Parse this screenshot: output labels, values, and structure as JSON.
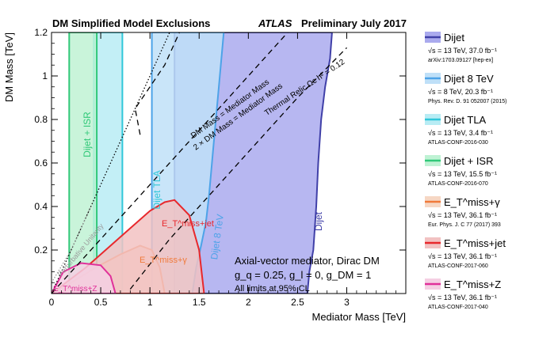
{
  "chart_data": {
    "type": "area",
    "title": "DM Simplified Model Exclusions",
    "title_right_italic": "ATLAS",
    "title_right": "Preliminary July 2017",
    "xlabel": "Mediator Mass [TeV]",
    "ylabel": "DM Mass [TeV]",
    "xlim": [
      0,
      3.6
    ],
    "ylim": [
      0,
      1.2
    ],
    "xticks": [
      0,
      0.5,
      1,
      1.5,
      2,
      2.5,
      3
    ],
    "xtick_labels": [
      "0",
      "0.5",
      "1",
      "1.5",
      "2",
      "2.5",
      "3"
    ],
    "yticks": [
      0.2,
      0.4,
      0.6,
      0.8,
      1.0,
      1.2
    ],
    "ytick_labels": [
      "0.2",
      "0.4",
      "0.6",
      "0.8",
      "1",
      "1.2"
    ],
    "regions": [
      {
        "name": "Dijet",
        "fill": "#aaaaee",
        "edge": "#4040a8",
        "points": [
          [
            1.25,
            0
          ],
          [
            1.25,
            1.2
          ],
          [
            2.85,
            1.2
          ],
          [
            2.83,
            1.08
          ],
          [
            2.78,
            0.95
          ],
          [
            2.74,
            0.8
          ],
          [
            2.71,
            0.6
          ],
          [
            2.69,
            0.4
          ],
          [
            2.66,
            0.2
          ],
          [
            2.62,
            0.1
          ],
          [
            2.6,
            0
          ]
        ]
      },
      {
        "name": "Dijet 8 TeV",
        "fill": "#bfe0f8",
        "edge": "#4da3e8",
        "points": [
          [
            1.02,
            0
          ],
          [
            1.02,
            1.2
          ],
          [
            1.75,
            1.2
          ],
          [
            1.7,
            0.95
          ],
          [
            1.66,
            0.75
          ],
          [
            1.63,
            0.6
          ],
          [
            1.6,
            0.45
          ],
          [
            1.57,
            0.33
          ],
          [
            1.52,
            0.22
          ],
          [
            1.47,
            0.12
          ],
          [
            1.43,
            0
          ]
        ]
      },
      {
        "name": "Dijet TLA",
        "fill": "#b8ecf4",
        "edge": "#30c7d9",
        "points": [
          [
            0.43,
            0
          ],
          [
            0.43,
            1.2
          ],
          [
            0.72,
            1.2
          ],
          [
            0.72,
            0
          ]
        ]
      },
      {
        "name": "Dijet + ISR",
        "fill": "#bff2d4",
        "edge": "#30c878",
        "points": [
          [
            0.18,
            0
          ],
          [
            0.18,
            1.2
          ],
          [
            0.46,
            1.2
          ],
          [
            0.46,
            0
          ]
        ]
      },
      {
        "name": "ETmiss+gamma",
        "fill": "#f6d7c4",
        "edge": "#f07a3a",
        "points": [
          [
            0,
            0
          ],
          [
            0.2,
            0.05
          ],
          [
            0.45,
            0.12
          ],
          [
            0.7,
            0.18
          ],
          [
            0.9,
            0.22
          ],
          [
            1.02,
            0.2
          ],
          [
            1.1,
            0.12
          ],
          [
            1.15,
            0
          ]
        ]
      },
      {
        "name": "ETmiss+jet",
        "fill": "#f2c2c2",
        "edge": "#e8282c",
        "points": [
          [
            0,
            0
          ],
          [
            0.35,
            0.12
          ],
          [
            0.6,
            0.22
          ],
          [
            0.8,
            0.3
          ],
          [
            1.0,
            0.38
          ],
          [
            1.15,
            0.42
          ],
          [
            1.25,
            0.43
          ],
          [
            1.4,
            0.36
          ],
          [
            1.5,
            0.2
          ],
          [
            1.55,
            0
          ]
        ]
      },
      {
        "name": "ETmiss+Z",
        "fill": "#f5cfe3",
        "edge": "#e0309a",
        "points": [
          [
            0,
            0
          ],
          [
            0.12,
            0.1
          ],
          [
            0.3,
            0.14
          ],
          [
            0.5,
            0.13
          ],
          [
            0.6,
            0.08
          ],
          [
            0.65,
            0
          ]
        ]
      }
    ],
    "lines": [
      {
        "name": "DM Mass = Mediator Mass",
        "kind": "dotted",
        "points": [
          [
            0,
            0
          ],
          [
            1.2,
            1.2
          ]
        ]
      },
      {
        "name": "2 x DM Mass = Mediator Mass",
        "kind": "dashed",
        "points": [
          [
            0,
            0
          ],
          [
            2.4,
            1.2
          ]
        ]
      },
      {
        "name": "Thermal Relic",
        "kind": "dashed",
        "points": [
          [
            0.8,
            0.02
          ],
          [
            1.2,
            0.25
          ],
          [
            1.6,
            0.45
          ],
          [
            2.0,
            0.65
          ],
          [
            2.5,
            0.9
          ],
          [
            3.0,
            1.13
          ]
        ]
      },
      {
        "name": "Thermal Relic upper",
        "kind": "dashed",
        "points": [
          [
            0.9,
            0.73
          ],
          [
            0.85,
            0.85
          ],
          [
            1.0,
            0.95
          ],
          [
            1.15,
            1.05
          ],
          [
            1.3,
            1.2
          ]
        ]
      },
      {
        "name": "Perturbative Unitarity",
        "kind": "gray-dotted",
        "points": [
          [
            0,
            0.05
          ],
          [
            0.2,
            0.2
          ],
          [
            0.4,
            0.4
          ]
        ]
      }
    ],
    "annotations": {
      "dm_eq_mediator": "DM Mass = Mediator Mass",
      "two_dm_eq_mediator": "2 × DM Mass = Mediator Mass",
      "thermal_relic": "Thermal Relic Ωc h² = 0.12",
      "perturbative_unitarity": "Perturbative Unitarity",
      "region_dijet": "Dijet",
      "region_dijet8": "Dijet 8 TeV",
      "region_tla": "Dijet TLA",
      "region_isr": "Dijet + ISR",
      "region_gamma": "E_T^miss+γ",
      "region_jet": "E_T^miss+jet",
      "region_z": "E_T^miss+Z",
      "model_line1": "Axial-vector mediator, Dirac DM",
      "model_line2": "g_q = 0.25, g_l = 0, g_DM = 1",
      "model_line3": "All limits at 95% CL"
    },
    "legend_position": "right",
    "legend": [
      {
        "label": "Dijet",
        "color": "#aaaaee",
        "edge": "#4040a8",
        "energy": "√s = 13 TeV, 37.0 fb⁻¹",
        "ref": "arXiv:1703.09127 [hep-ex]"
      },
      {
        "label": "Dijet 8 TeV",
        "color": "#bfe0f8",
        "edge": "#4da3e8",
        "energy": "√s = 8 TeV, 20.3 fb⁻¹",
        "ref": "Phys. Rev. D. 91 052007 (2015)"
      },
      {
        "label": "Dijet TLA",
        "color": "#b8ecf4",
        "edge": "#30c7d9",
        "energy": "√s = 13 TeV, 3.4 fb⁻¹",
        "ref": "ATLAS-CONF-2016-030"
      },
      {
        "label": "Dijet + ISR",
        "color": "#bff2d4",
        "edge": "#30c878",
        "energy": "√s = 13 TeV, 15.5 fb⁻¹",
        "ref": "ATLAS-CONF-2016-070"
      },
      {
        "label": "E_T^miss+γ",
        "color": "#f6d7c4",
        "edge": "#f07a3a",
        "energy": "√s = 13 TeV, 36.1 fb⁻¹",
        "ref": "Eur. Phys. J. C 77 (2017) 393"
      },
      {
        "label": "E_T^miss+jet",
        "color": "#f2c2c2",
        "edge": "#e8282c",
        "energy": "√s = 13 TeV, 36.1 fb⁻¹",
        "ref": "ATLAS-CONF-2017-060"
      },
      {
        "label": "E_T^miss+Z",
        "color": "#f5cfe3",
        "edge": "#e0309a",
        "energy": "√s = 13 TeV, 36.1 fb⁻¹",
        "ref": "ATLAS-CONF-2017-040"
      }
    ]
  }
}
